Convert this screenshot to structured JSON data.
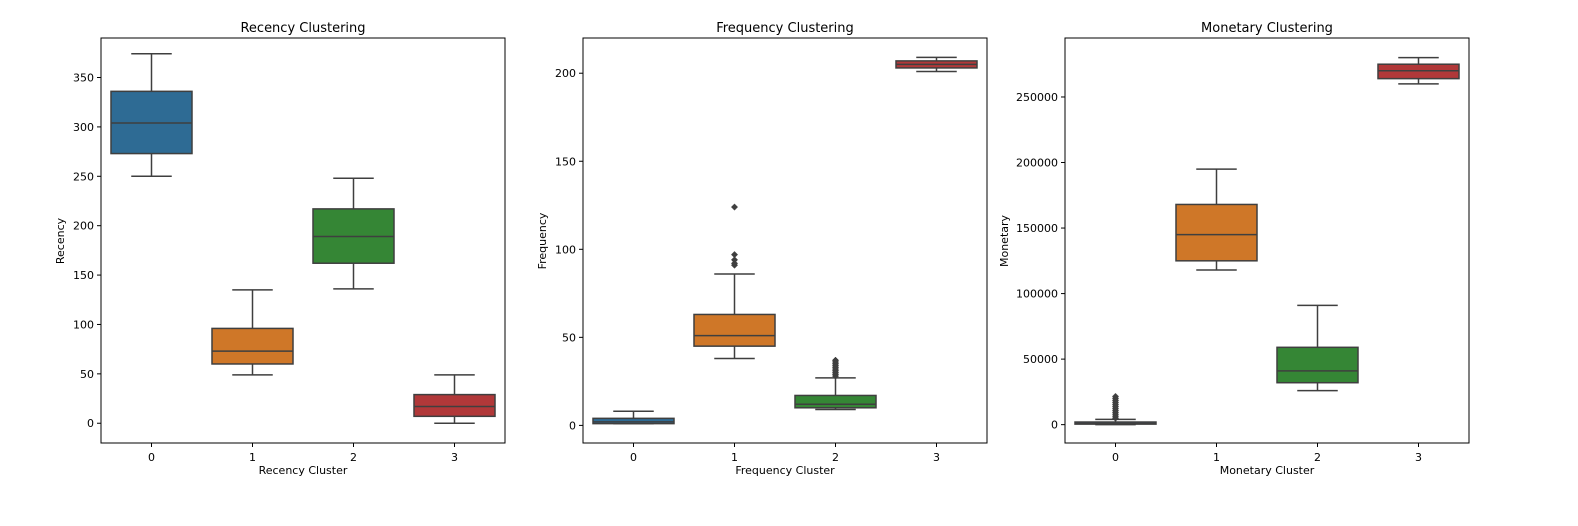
{
  "chart_data": [
    {
      "type": "box",
      "title": "Recency Clustering",
      "xlabel": "Recency Cluster",
      "ylabel": "Recency",
      "categories": [
        "0",
        "1",
        "2",
        "3"
      ],
      "ylim": [
        -20,
        390
      ],
      "yticks": [
        0,
        50,
        100,
        150,
        200,
        250,
        300,
        350
      ],
      "ytick_labels": [
        "0",
        "50",
        "100",
        "150",
        "200",
        "250",
        "300",
        "350"
      ],
      "boxes": [
        {
          "category": "0",
          "whislo": 250,
          "q1": 273,
          "med": 304,
          "q3": 336,
          "whishi": 374,
          "fliers": []
        },
        {
          "category": "1",
          "whislo": 49,
          "q1": 60,
          "med": 73,
          "q3": 96,
          "whishi": 135,
          "fliers": []
        },
        {
          "category": "2",
          "whislo": 136,
          "q1": 162,
          "med": 189,
          "q3": 217,
          "whishi": 248,
          "fliers": []
        },
        {
          "category": "3",
          "whislo": 0,
          "q1": 7,
          "med": 17,
          "q3": 29,
          "whishi": 49,
          "fliers": []
        }
      ],
      "colors": [
        "#3274a1",
        "#e1812c",
        "#3a923a",
        "#c03d3e"
      ],
      "grid": false,
      "legend": "none"
    },
    {
      "type": "box",
      "title": "Frequency Clustering",
      "xlabel": "Frequency Cluster",
      "ylabel": "Frequency",
      "categories": [
        "0",
        "1",
        "2",
        "3"
      ],
      "ylim": [
        -10,
        220
      ],
      "yticks": [
        0,
        50,
        100,
        150,
        200
      ],
      "ytick_labels": [
        "0",
        "50",
        "100",
        "150",
        "200"
      ],
      "boxes": [
        {
          "category": "0",
          "whislo": 1,
          "q1": 1,
          "med": 2,
          "q3": 4,
          "whishi": 8,
          "fliers": []
        },
        {
          "category": "1",
          "whislo": 38,
          "q1": 45,
          "med": 51,
          "q3": 63,
          "whishi": 86,
          "fliers": [
            91,
            92,
            94,
            97,
            124
          ]
        },
        {
          "category": "2",
          "whislo": 9,
          "q1": 10,
          "med": 12,
          "q3": 17,
          "whishi": 27,
          "fliers": [
            28,
            29,
            30,
            31,
            32,
            33,
            34,
            35,
            36,
            37
          ]
        },
        {
          "category": "3",
          "whislo": 201,
          "q1": 203,
          "med": 205,
          "q3": 207,
          "whishi": 209,
          "fliers": []
        }
      ],
      "colors": [
        "#3274a1",
        "#e1812c",
        "#3a923a",
        "#c03d3e"
      ],
      "grid": false,
      "legend": "none"
    },
    {
      "type": "box",
      "title": "Monetary Clustering",
      "xlabel": "Monetary Cluster",
      "ylabel": "Monetary",
      "categories": [
        "0",
        "1",
        "2",
        "3"
      ],
      "ylim": [
        -14000,
        295000
      ],
      "yticks": [
        0,
        50000,
        100000,
        150000,
        200000,
        250000
      ],
      "ytick_labels": [
        "0",
        "50000",
        "100000",
        "150000",
        "200000",
        "250000"
      ],
      "boxes": [
        {
          "category": "0",
          "whislo": 0,
          "q1": 400,
          "med": 1000,
          "q3": 2000,
          "whishi": 4000,
          "fliers": [
            5000,
            6500,
            8000,
            9500,
            11000,
            12500,
            14000,
            15500,
            17000,
            18500,
            20000,
            21500
          ]
        },
        {
          "category": "1",
          "whislo": 118000,
          "q1": 125000,
          "med": 145000,
          "q3": 168000,
          "whishi": 195000,
          "fliers": []
        },
        {
          "category": "2",
          "whislo": 26000,
          "q1": 32000,
          "med": 41000,
          "q3": 59000,
          "whishi": 91000,
          "fliers": []
        },
        {
          "category": "3",
          "whislo": 260000,
          "q1": 264000,
          "med": 270000,
          "q3": 275000,
          "whishi": 280000,
          "fliers": []
        }
      ],
      "colors": [
        "#3274a1",
        "#e1812c",
        "#3a923a",
        "#c03d3e"
      ],
      "grid": false,
      "legend": "none"
    }
  ]
}
